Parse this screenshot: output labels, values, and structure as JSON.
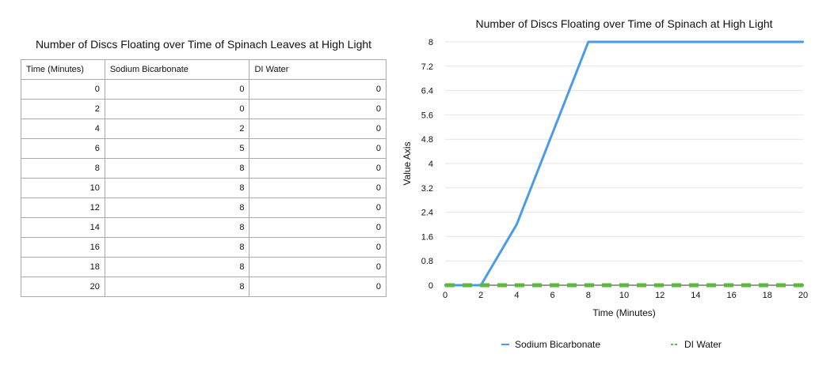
{
  "table": {
    "title": "Number of Discs Floating over Time of Spinach Leaves at High Light",
    "headers": [
      "Time (Minutes)",
      "Sodium Bicarbonate",
      "DI Water"
    ],
    "rows": [
      [
        "0",
        "0",
        "0"
      ],
      [
        "2",
        "0",
        "0"
      ],
      [
        "4",
        "2",
        "0"
      ],
      [
        "6",
        "5",
        "0"
      ],
      [
        "8",
        "8",
        "0"
      ],
      [
        "10",
        "8",
        "0"
      ],
      [
        "12",
        "8",
        "0"
      ],
      [
        "14",
        "8",
        "0"
      ],
      [
        "16",
        "8",
        "0"
      ],
      [
        "18",
        "8",
        "0"
      ],
      [
        "20",
        "8",
        "0"
      ]
    ]
  },
  "chart_data": {
    "type": "line",
    "title": "Number of Discs Floating over Time of Spinach at High Light",
    "xlabel": "Time (Minutes)",
    "ylabel": "Value Axis",
    "x": [
      0,
      2,
      4,
      6,
      8,
      10,
      12,
      14,
      16,
      18,
      20
    ],
    "xticks": [
      "0",
      "2",
      "4",
      "6",
      "8",
      "10",
      "12",
      "14",
      "16",
      "18",
      "20"
    ],
    "yticks": [
      "0",
      "0.8",
      "1.6",
      "2.4",
      "3.2",
      "4",
      "4.8",
      "5.6",
      "6.4",
      "7.2",
      "8"
    ],
    "xlim": [
      0,
      20
    ],
    "ylim": [
      0,
      8
    ],
    "grid": true,
    "legend_position": "bottom",
    "series": [
      {
        "name": "Sodium Bicarbonate",
        "values": [
          0,
          0,
          2,
          5,
          8,
          8,
          8,
          8,
          8,
          8,
          8
        ],
        "color": "#4a9be8",
        "style": "solid"
      },
      {
        "name": "DI Water",
        "values": [
          0,
          0,
          0,
          0,
          0,
          0,
          0,
          0,
          0,
          0,
          0
        ],
        "color": "#5db83e",
        "style": "dashed"
      }
    ]
  }
}
